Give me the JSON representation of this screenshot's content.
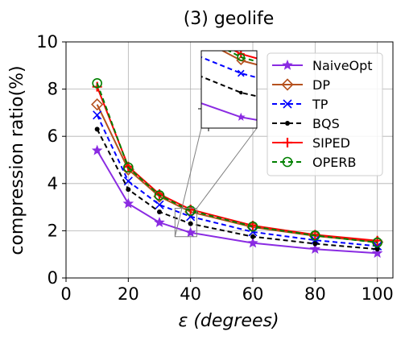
{
  "chart_data": {
    "type": "line",
    "title": "(3) geolife",
    "xlabel_symbol": "ε",
    "xlabel_unit": "(degrees)",
    "ylabel": "compression ratio(%)",
    "xlim": [
      0,
      105
    ],
    "ylim": [
      0,
      10
    ],
    "xticks": [
      0,
      20,
      40,
      60,
      80,
      100
    ],
    "yticks": [
      0,
      2,
      4,
      6,
      8,
      10
    ],
    "grid": true,
    "legend_position": "upper-right",
    "x": [
      10,
      20,
      30,
      40,
      60,
      80,
      100
    ],
    "series": [
      {
        "name": "NaiveOpt",
        "color": "#8a2be2",
        "dash": "solid",
        "marker": "star",
        "values": [
          5.4,
          3.15,
          2.35,
          1.92,
          1.48,
          1.22,
          1.05
        ]
      },
      {
        "name": "DP",
        "color": "#b5511e",
        "dash": "solid",
        "marker": "diamond",
        "values": [
          7.35,
          4.6,
          3.45,
          2.8,
          2.15,
          1.78,
          1.52
        ]
      },
      {
        "name": "TP",
        "color": "#0000ff",
        "dash": "dashed",
        "marker": "x",
        "values": [
          6.9,
          4.1,
          3.1,
          2.6,
          1.95,
          1.6,
          1.35
        ]
      },
      {
        "name": "BQS",
        "color": "#000000",
        "dash": "dashed",
        "marker": "dot",
        "values": [
          6.3,
          3.75,
          2.8,
          2.3,
          1.75,
          1.45,
          1.22
        ]
      },
      {
        "name": "SIPED",
        "color": "#ff0000",
        "dash": "solid",
        "marker": "plus",
        "values": [
          8.1,
          4.72,
          3.55,
          2.9,
          2.22,
          1.83,
          1.58
        ]
      },
      {
        "name": "OPERB",
        "color": "#008000",
        "dash": "dashed",
        "marker": "circle",
        "values": [
          8.25,
          4.68,
          3.5,
          2.85,
          2.18,
          1.8,
          1.5
        ]
      }
    ],
    "inset": {
      "zoom_x_range": [
        35,
        42
      ],
      "zoom_y_range": [
        1.75,
        2.95
      ]
    }
  }
}
